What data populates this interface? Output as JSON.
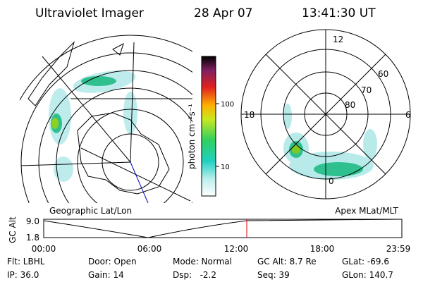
{
  "header": {
    "title": "Ultraviolet Imager",
    "date": "28 Apr 07",
    "time": "13:41:30 UT"
  },
  "colorbar": {
    "label": "photon cm⁻²s⁻¹",
    "ticks": [
      "100",
      "10"
    ]
  },
  "polar_plot": {
    "labels": [
      "12",
      "60",
      "70",
      "80",
      "18",
      "6",
      "0"
    ]
  },
  "altitude_plot": {
    "left_label": "Geographic Lat/Lon",
    "right_label": "Apex MLat/MLT",
    "y_label": "GC Alt",
    "y_ticks": [
      "9.0",
      "1.8"
    ],
    "x_ticks": [
      "00:00",
      "06:00",
      "12:00",
      "18:00",
      "23:59"
    ]
  },
  "footer": {
    "rows": [
      [
        "Flt: LBHL",
        "Door: Open",
        "Mode: Normal",
        "GC Alt: 8.7 Re",
        "GLat: -69.6"
      ],
      [
        "IP: 36.0",
        "Gain: 14",
        "Dsp:   -2.2",
        "Seq: 39",
        "GLon: 140.7"
      ]
    ]
  }
}
